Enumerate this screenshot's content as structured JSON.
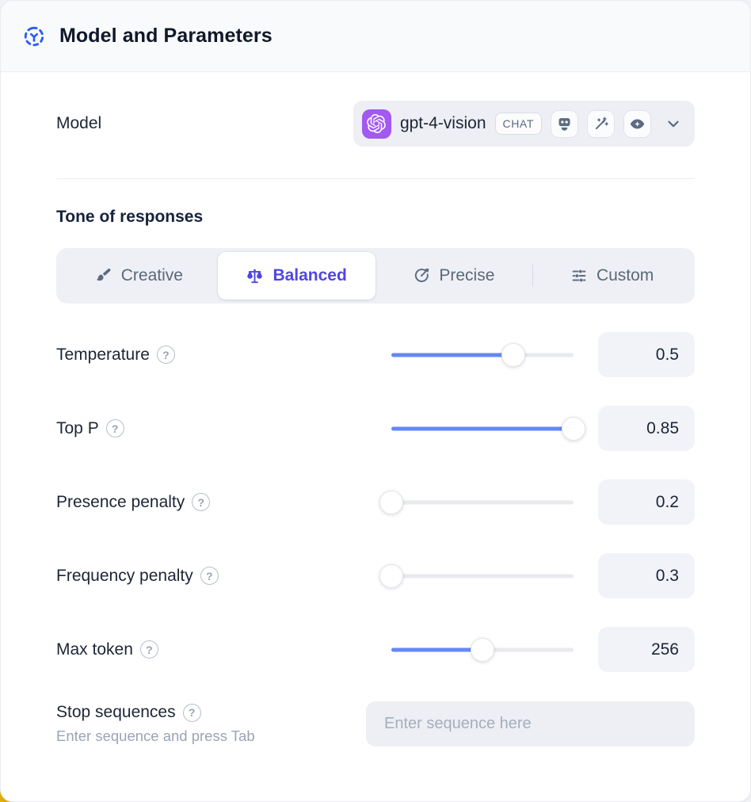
{
  "header": {
    "title": "Model and Parameters",
    "icon": "orbit-icon"
  },
  "model": {
    "label": "Model",
    "name": "gpt-4-vision",
    "type_badge": "CHAT",
    "provider_icon": "openai-logo",
    "capability_icons": [
      "robot-icon",
      "magic-wand-icon",
      "vision-eye-icon"
    ],
    "dropdown_icon": "chevron-down-icon"
  },
  "tone": {
    "heading": "Tone of responses",
    "selected": "Balanced",
    "tabs": [
      {
        "label": "Creative",
        "icon": "paintbrush-icon",
        "selected": false
      },
      {
        "label": "Balanced",
        "icon": "scales-icon",
        "selected": true
      },
      {
        "label": "Precise",
        "icon": "goal-icon",
        "selected": false
      },
      {
        "label": "Custom",
        "icon": "sliders-icon",
        "selected": false
      }
    ]
  },
  "params": {
    "rows": [
      {
        "label": "Temperature",
        "value": "0.5",
        "percent": 67
      },
      {
        "label": "Top P",
        "value": "0.85",
        "percent": 100
      },
      {
        "label": "Presence penalty",
        "value": "0.2",
        "percent": 0
      },
      {
        "label": "Frequency penalty",
        "value": "0.3",
        "percent": 0
      },
      {
        "label": "Max token",
        "value": "256",
        "percent": 50
      }
    ]
  },
  "stop": {
    "label": "Stop sequences",
    "helper": "Enter sequence and press Tab",
    "placeholder": "Enter sequence here"
  },
  "icons": {
    "help_glyph": "?"
  },
  "colors": {
    "accent": "#4f46e5",
    "slider": "#6588f7",
    "provider": "#a259ef",
    "header-icon": "#2d5bf0",
    "slate": "#5d6b82",
    "warning": "#e2ae07"
  }
}
